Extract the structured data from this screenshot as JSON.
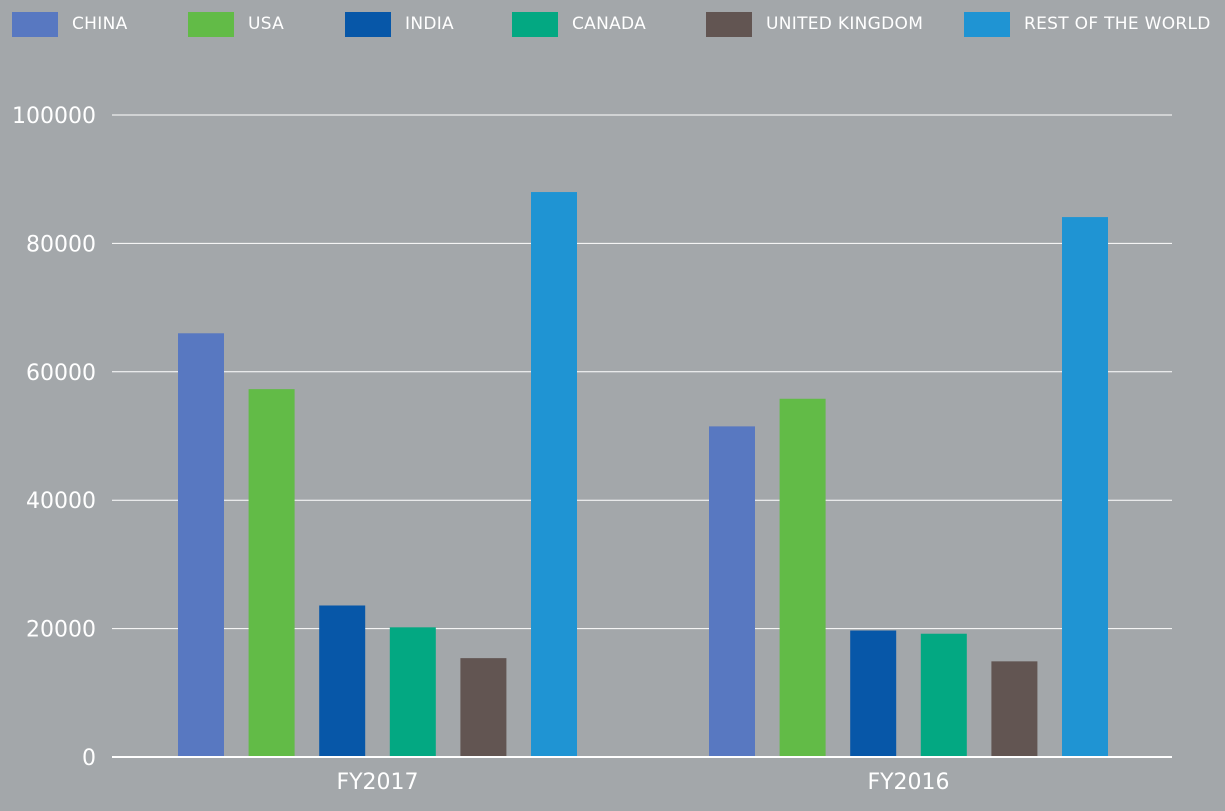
{
  "chart_data": {
    "type": "bar",
    "categories": [
      "FY2017",
      "FY2016"
    ],
    "series": [
      {
        "name": "CHINA",
        "color": "#5878c1",
        "values": [
          66000,
          51500
        ]
      },
      {
        "name": "USA",
        "color": "#62bb47",
        "values": [
          57300,
          55800
        ]
      },
      {
        "name": "INDIA",
        "color": "#0757a8",
        "values": [
          23600,
          19700
        ]
      },
      {
        "name": "CANADA",
        "color": "#03a882",
        "values": [
          20200,
          19200
        ]
      },
      {
        "name": "UNITED KINGDOM",
        "color": "#625552",
        "values": [
          15400,
          14900
        ]
      },
      {
        "name": "REST OF THE WORLD",
        "color": "#1f94d3",
        "values": [
          88000,
          84100
        ]
      }
    ],
    "ylim": [
      0,
      100000
    ],
    "yticks": [
      0,
      20000,
      40000,
      60000,
      80000,
      100000
    ],
    "ytick_labels": [
      "0",
      "20000",
      "40000",
      "60000",
      "80000",
      "100000"
    ],
    "grid": true,
    "legend_position": "top",
    "title": "",
    "xlabel": "",
    "ylabel": ""
  }
}
